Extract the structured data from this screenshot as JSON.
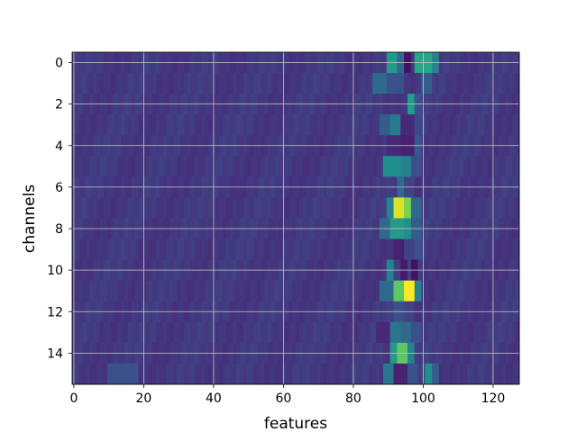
{
  "chart_data": {
    "type": "heatmap",
    "title": "",
    "xlabel": "features",
    "ylabel": "channels",
    "x_range": [
      0,
      127
    ],
    "y_range": [
      0,
      15
    ],
    "rows": 16,
    "cols": 128,
    "xticks": [
      0,
      20,
      40,
      60,
      80,
      100,
      120
    ],
    "yticks": [
      0,
      2,
      4,
      6,
      8,
      10,
      12,
      14
    ],
    "grid": true,
    "colormap": "viridis",
    "value_range": [
      0,
      1
    ],
    "baseline_value": 0.17,
    "regions": [
      {
        "channel": 0,
        "features": [
          [
            90,
            92,
            0.55
          ],
          [
            93,
            94,
            0.35
          ],
          [
            95,
            96,
            0.05
          ],
          [
            98,
            102,
            0.6
          ],
          [
            103,
            104,
            0.45
          ]
        ]
      },
      {
        "channel": 1,
        "features": [
          [
            86,
            89,
            0.35
          ],
          [
            90,
            94,
            0.25
          ],
          [
            100,
            102,
            0.3
          ]
        ]
      },
      {
        "channel": 2,
        "features": [
          [
            96,
            97,
            0.55
          ],
          [
            98,
            99,
            0.25
          ]
        ]
      },
      {
        "channel": 3,
        "features": [
          [
            88,
            90,
            0.3
          ],
          [
            91,
            93,
            0.42
          ],
          [
            94,
            97,
            0.12
          ],
          [
            98,
            100,
            0.22
          ]
        ]
      },
      {
        "channel": 4,
        "features": [
          [
            90,
            93,
            0.12
          ],
          [
            94,
            97,
            0.1
          ],
          [
            98,
            99,
            0.28
          ]
        ]
      },
      {
        "channel": 5,
        "features": [
          [
            89,
            93,
            0.5
          ],
          [
            94,
            96,
            0.45
          ],
          [
            97,
            99,
            0.25
          ]
        ]
      },
      {
        "channel": 6,
        "features": [
          [
            93,
            94,
            0.35
          ],
          [
            95,
            97,
            0.2
          ]
        ]
      },
      {
        "channel": 7,
        "features": [
          [
            90,
            91,
            0.45
          ],
          [
            92,
            94,
            0.95
          ],
          [
            95,
            96,
            0.8
          ],
          [
            97,
            99,
            0.35
          ]
        ]
      },
      {
        "channel": 8,
        "features": [
          [
            88,
            90,
            0.35
          ],
          [
            91,
            94,
            0.55
          ],
          [
            95,
            96,
            0.5
          ],
          [
            97,
            99,
            0.3
          ]
        ]
      },
      {
        "channel": 9,
        "features": [
          [
            92,
            94,
            0.1
          ],
          [
            95,
            97,
            0.2
          ],
          [
            98,
            99,
            0.25
          ]
        ]
      },
      {
        "channel": 10,
        "features": [
          [
            90,
            91,
            0.45
          ],
          [
            94,
            95,
            0.08
          ],
          [
            97,
            98,
            0.05
          ],
          [
            100,
            101,
            0.15
          ]
        ]
      },
      {
        "channel": 11,
        "features": [
          [
            88,
            91,
            0.35
          ],
          [
            92,
            94,
            0.75
          ],
          [
            95,
            97,
            1.0
          ],
          [
            98,
            99,
            0.45
          ]
        ]
      },
      {
        "channel": 12,
        "features": [
          [
            92,
            94,
            0.25
          ],
          [
            95,
            97,
            0.2
          ]
        ]
      },
      {
        "channel": 13,
        "features": [
          [
            87,
            90,
            0.12
          ],
          [
            91,
            93,
            0.4
          ],
          [
            94,
            96,
            0.35
          ],
          [
            97,
            99,
            0.25
          ]
        ]
      },
      {
        "channel": 14,
        "features": [
          [
            91,
            92,
            0.55
          ],
          [
            93,
            95,
            0.75
          ],
          [
            96,
            97,
            0.45
          ]
        ]
      },
      {
        "channel": 15,
        "features": [
          [
            10,
            18,
            0.25
          ],
          [
            89,
            91,
            0.4
          ],
          [
            92,
            95,
            0.1
          ],
          [
            96,
            98,
            0.25
          ],
          [
            101,
            102,
            0.5
          ],
          [
            103,
            104,
            0.3
          ]
        ]
      }
    ]
  }
}
